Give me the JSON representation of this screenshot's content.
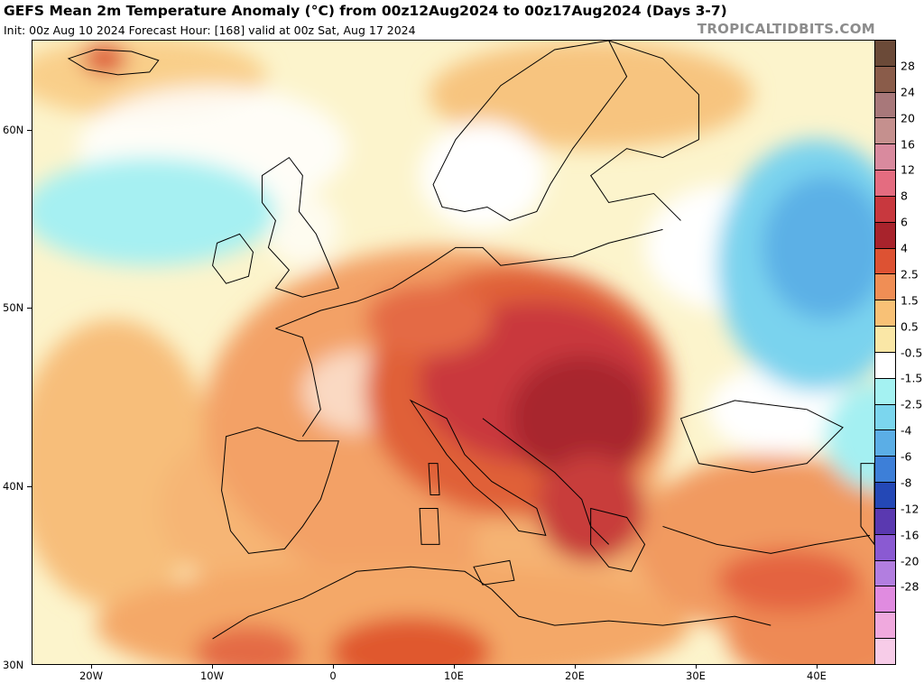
{
  "header": {
    "title": "GEFS Mean 2m Temperature Anomaly (°C) from 00z12Aug2024 to 00z17Aug2024 (Days 3-7)",
    "subtitle": "Init: 00z Aug 10 2024   Forecast Hour: [168]   valid at 00z Sat, Aug 17 2024",
    "brand": "TROPICALTIDBITS.COM"
  },
  "axes": {
    "lat_labels": [
      {
        "label": "60N",
        "value": 60
      },
      {
        "label": "50N",
        "value": 50
      },
      {
        "label": "40N",
        "value": 40
      },
      {
        "label": "30N",
        "value": 30
      }
    ],
    "lon_labels": [
      {
        "label": "20W",
        "value": -20
      },
      {
        "label": "10W",
        "value": -10
      },
      {
        "label": "0",
        "value": 0
      },
      {
        "label": "10E",
        "value": 10
      },
      {
        "label": "20E",
        "value": 20
      },
      {
        "label": "30E",
        "value": 30
      },
      {
        "label": "40E",
        "value": 40
      }
    ],
    "lon_range": [
      -25,
      45
    ],
    "lat_range": [
      30,
      65
    ]
  },
  "colorbar": {
    "labels": [
      "28",
      "24",
      "20",
      "16",
      "12",
      "8",
      "6",
      "4",
      "2.5",
      "1.5",
      "0.5",
      "-0.5",
      "-1.5",
      "-2.5",
      "-4",
      "-6",
      "-8",
      "-12",
      "-16",
      "-20",
      "-28"
    ],
    "colors": [
      "#6b4a38",
      "#8a5c4a",
      "#a8787a",
      "#c5908e",
      "#d98a9e",
      "#e46c80",
      "#c8383e",
      "#a8232c",
      "#dd5233",
      "#f08e55",
      "#f8c176",
      "#fae7a6",
      "#ffffff",
      "#a4f2f2",
      "#7bd6ee",
      "#5baee6",
      "#3d7fd8",
      "#2448b6",
      "#5a39b0",
      "#8a5ad2",
      "#b27ee0",
      "#e08be0",
      "#f0a9de",
      "#f7cce8"
    ]
  },
  "map_colors": {
    "ocean": "#fcf5cf",
    "coast": "#000000"
  }
}
